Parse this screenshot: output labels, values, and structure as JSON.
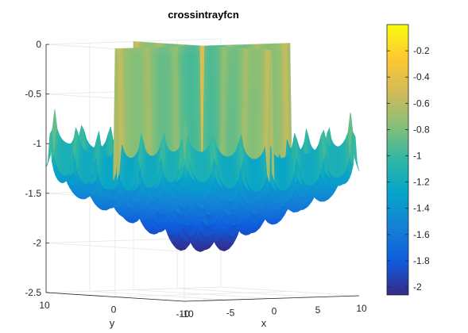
{
  "chart_data": {
    "type": "surface",
    "title": "crossintrayfcn",
    "xlabel": "x",
    "ylabel": "y",
    "zlabel": "",
    "xlim": [
      -10,
      10
    ],
    "ylim": [
      -10,
      10
    ],
    "zlim": [
      -2.5,
      0
    ],
    "x_ticks": [
      -10,
      -5,
      0,
      5,
      10
    ],
    "y_ticks": [
      10,
      0,
      -10
    ],
    "z_ticks": [
      0,
      -0.5,
      -1,
      -1.5,
      -2,
      -2.5
    ],
    "x_tick_labels": [
      "-10",
      "-5",
      "0",
      "5",
      "10"
    ],
    "y_tick_labels": [
      "10",
      "0",
      "-10"
    ],
    "z_tick_labels": [
      "0",
      "-0.5",
      "-1",
      "-1.5",
      "-2",
      "-2.5"
    ],
    "surface_value_range": [
      -2.06,
      0
    ],
    "colorbar": {
      "range": [
        -2.06,
        0
      ],
      "ticks": [
        -0.2,
        -0.4,
        -0.6,
        -0.8,
        -1,
        -1.2,
        -1.4,
        -1.6,
        -1.8,
        -2
      ],
      "tick_labels": [
        "-0.2",
        "-0.4",
        "-0.6",
        "-0.8",
        "-1",
        "-1.2",
        "-1.4",
        "-1.6",
        "-1.8",
        "-2"
      ],
      "colormap": "parula",
      "colors": [
        "#352a87",
        "#0f5cdd",
        "#1481d6",
        "#06a4ca",
        "#2eb7a4",
        "#87bf77",
        "#d1bb59",
        "#fec832",
        "#f9fb0e"
      ]
    },
    "grid": true,
    "legend": "none"
  }
}
